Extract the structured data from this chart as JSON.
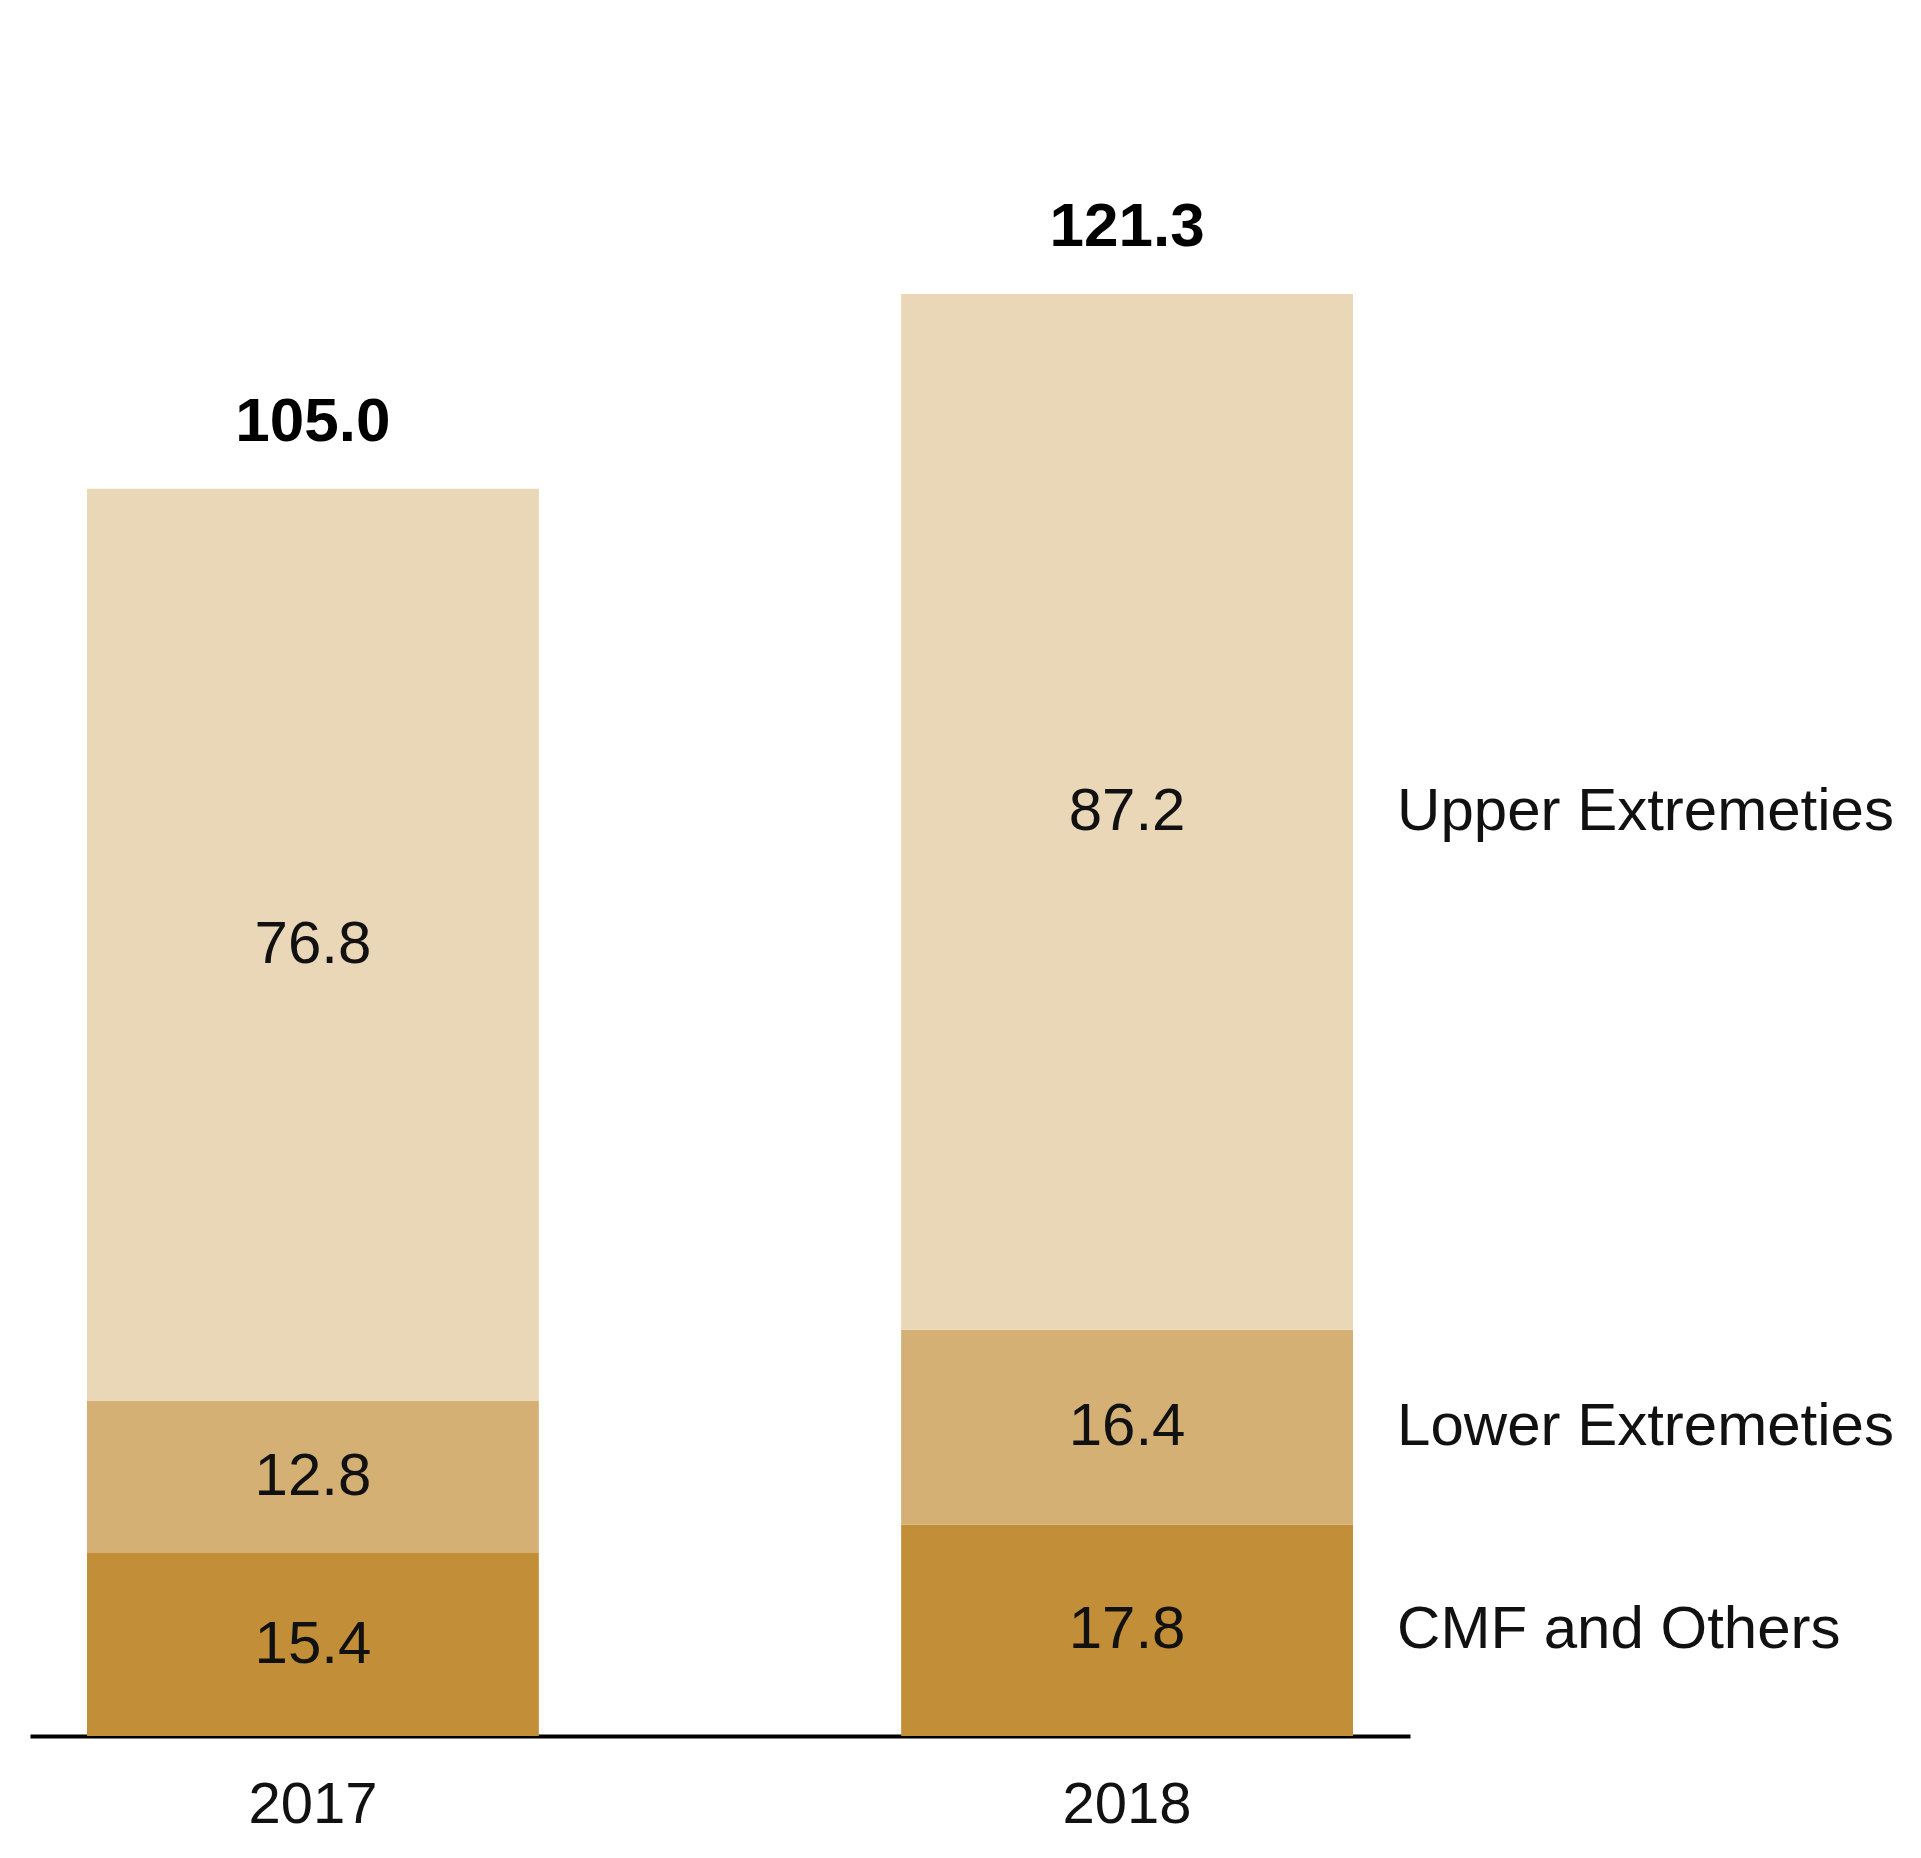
{
  "chart_data": {
    "type": "bar",
    "stacked": true,
    "data_labels": true,
    "legend": false,
    "tick_labels": "x",
    "categories": [
      "2017",
      "2018"
    ],
    "series": [
      {
        "name": "CMF and Others",
        "color": "#c28e38",
        "values": [
          15.4,
          17.8
        ]
      },
      {
        "name": "Lower Extremeties",
        "color": "#d5b075",
        "values": [
          12.8,
          16.4
        ]
      },
      {
        "name": "Upper Extremeties",
        "color": "#e9d7b7",
        "values": [
          76.8,
          87.2
        ]
      }
    ],
    "totals": [
      "105.0",
      "121.3"
    ]
  }
}
